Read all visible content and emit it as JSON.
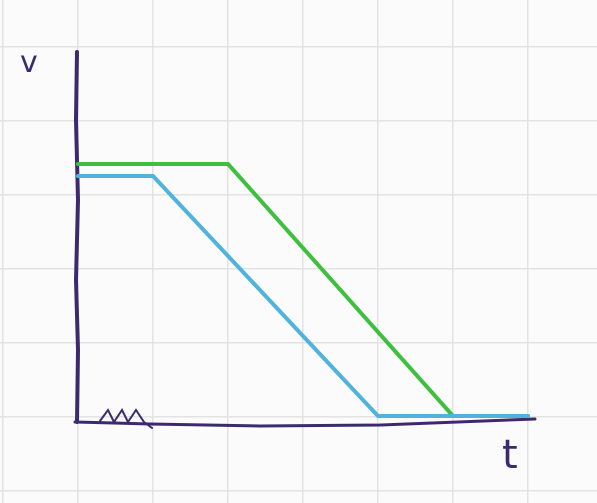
{
  "chart_data": {
    "type": "line",
    "title": "",
    "xlabel": "t",
    "ylabel": "v",
    "xlim": [
      0,
      6
    ],
    "ylim": [
      0,
      3
    ],
    "grid": true,
    "legend": "none",
    "series": [
      {
        "color": "#3fbf3f",
        "x": [
          0,
          2,
          5,
          6
        ],
        "y": [
          2.1,
          2.1,
          0,
          0
        ]
      },
      {
        "color": "#4fb3dc",
        "x": [
          0,
          1,
          4,
          6
        ],
        "y": [
          2.0,
          2.0,
          0,
          0
        ]
      }
    ],
    "colors": {
      "axis": "#3b2b6e",
      "grid": "#e3e3e3"
    }
  }
}
